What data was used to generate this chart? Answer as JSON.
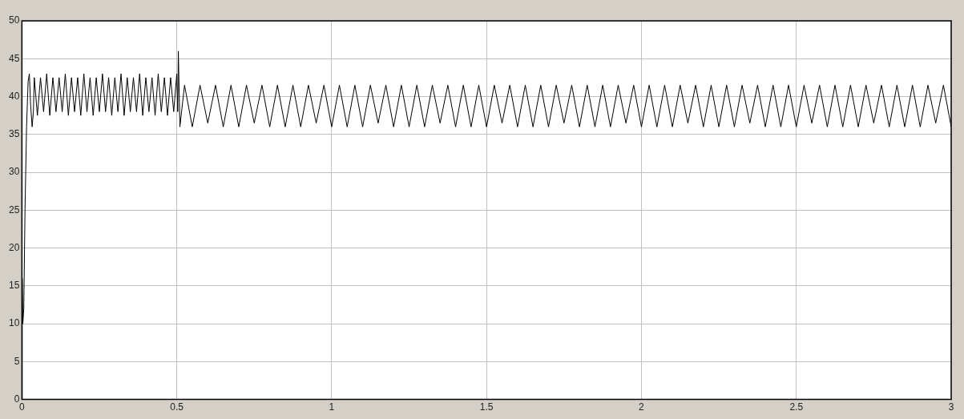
{
  "chart_data": {
    "type": "line",
    "color": "#000000",
    "grid": true,
    "xlim": [
      0,
      3
    ],
    "ylim": [
      0,
      50
    ],
    "xticks": [
      0,
      0.5,
      1,
      1.5,
      2,
      2.5,
      3
    ],
    "yticks": [
      0,
      5,
      10,
      15,
      20,
      25,
      30,
      35,
      40,
      45,
      50
    ],
    "x": [
      0,
      0.001,
      0.003,
      0.006,
      0.01,
      0.015,
      0.02,
      0.024,
      0.028,
      0.033,
      0.037,
      0.04,
      0.05,
      0.06,
      0.07,
      0.08,
      0.09,
      0.1,
      0.11,
      0.12,
      0.13,
      0.14,
      0.15,
      0.16,
      0.17,
      0.18,
      0.19,
      0.2,
      0.21,
      0.22,
      0.23,
      0.24,
      0.25,
      0.26,
      0.27,
      0.28,
      0.29,
      0.3,
      0.31,
      0.32,
      0.33,
      0.34,
      0.35,
      0.36,
      0.37,
      0.38,
      0.39,
      0.4,
      0.41,
      0.42,
      0.43,
      0.44,
      0.45,
      0.46,
      0.47,
      0.48,
      0.49,
      0.5,
      0.503,
      0.505,
      0.51,
      0.525,
      0.55,
      0.575,
      0.6,
      0.625,
      0.65,
      0.675,
      0.7,
      0.725,
      0.75,
      0.775,
      0.8,
      0.825,
      0.85,
      0.875,
      0.9,
      0.925,
      0.95,
      0.975,
      1,
      1.025,
      1.05,
      1.075,
      1.1,
      1.125,
      1.15,
      1.175,
      1.2,
      1.225,
      1.25,
      1.275,
      1.3,
      1.325,
      1.35,
      1.375,
      1.4,
      1.425,
      1.45,
      1.475,
      1.5,
      1.525,
      1.55,
      1.575,
      1.6,
      1.625,
      1.65,
      1.675,
      1.7,
      1.725,
      1.75,
      1.775,
      1.8,
      1.825,
      1.85,
      1.875,
      1.9,
      1.925,
      1.95,
      1.975,
      2,
      2.025,
      2.05,
      2.075,
      2.1,
      2.125,
      2.15,
      2.175,
      2.2,
      2.225,
      2.25,
      2.275,
      2.3,
      2.325,
      2.35,
      2.375,
      2.4,
      2.425,
      2.45,
      2.475,
      2.5,
      2.525,
      2.55,
      2.575,
      2.6,
      2.625,
      2.65,
      2.675,
      2.7,
      2.725,
      2.75,
      2.775,
      2.8,
      2.825,
      2.85,
      2.875,
      2.9,
      2.925,
      2.95,
      2.975,
      3
    ],
    "values": [
      0,
      16,
      10,
      12,
      25,
      36,
      42,
      43,
      39,
      36,
      38,
      42.5,
      37.5,
      42.5,
      38,
      43,
      37.5,
      42.5,
      38,
      42.5,
      38,
      43,
      37.5,
      42.5,
      38,
      42.5,
      37.5,
      43,
      38,
      42.5,
      37.5,
      42.5,
      38,
      43,
      38,
      42.5,
      37.5,
      42.5,
      38,
      43,
      37.5,
      42.5,
      38,
      42.5,
      38,
      43,
      37.5,
      42.5,
      38,
      42.5,
      37.5,
      43,
      38,
      42.5,
      37.5,
      42.5,
      38,
      43,
      38,
      46,
      36,
      41.5,
      36,
      41.5,
      36.5,
      41.5,
      36,
      41.5,
      36,
      41.5,
      36.5,
      41.5,
      36,
      41.5,
      36,
      41.5,
      36,
      41.5,
      36.5,
      41.5,
      36,
      41.5,
      36,
      41.5,
      36,
      41.5,
      36.5,
      41.5,
      36,
      41.5,
      36,
      41.5,
      36,
      41.5,
      36.5,
      41.5,
      36,
      41.5,
      36,
      41.5,
      36,
      41.5,
      36.5,
      41.5,
      36,
      41.5,
      36,
      41.5,
      36,
      41.5,
      36.5,
      41.5,
      36,
      41.5,
      36,
      41.5,
      36,
      41.5,
      36.5,
      41.5,
      36,
      41.5,
      36,
      41.5,
      36,
      41.5,
      36.5,
      41.5,
      36,
      41.5,
      36,
      41.5,
      36,
      41.5,
      36.5,
      41.5,
      36,
      41.5,
      36,
      41.5,
      36,
      41.5,
      36.5,
      41.5,
      36,
      41.5,
      36,
      41.5,
      36,
      41.5,
      36.5,
      41.5,
      36,
      41.5,
      36,
      41.5,
      36,
      41.5,
      36.5,
      41.5,
      36
    ]
  }
}
